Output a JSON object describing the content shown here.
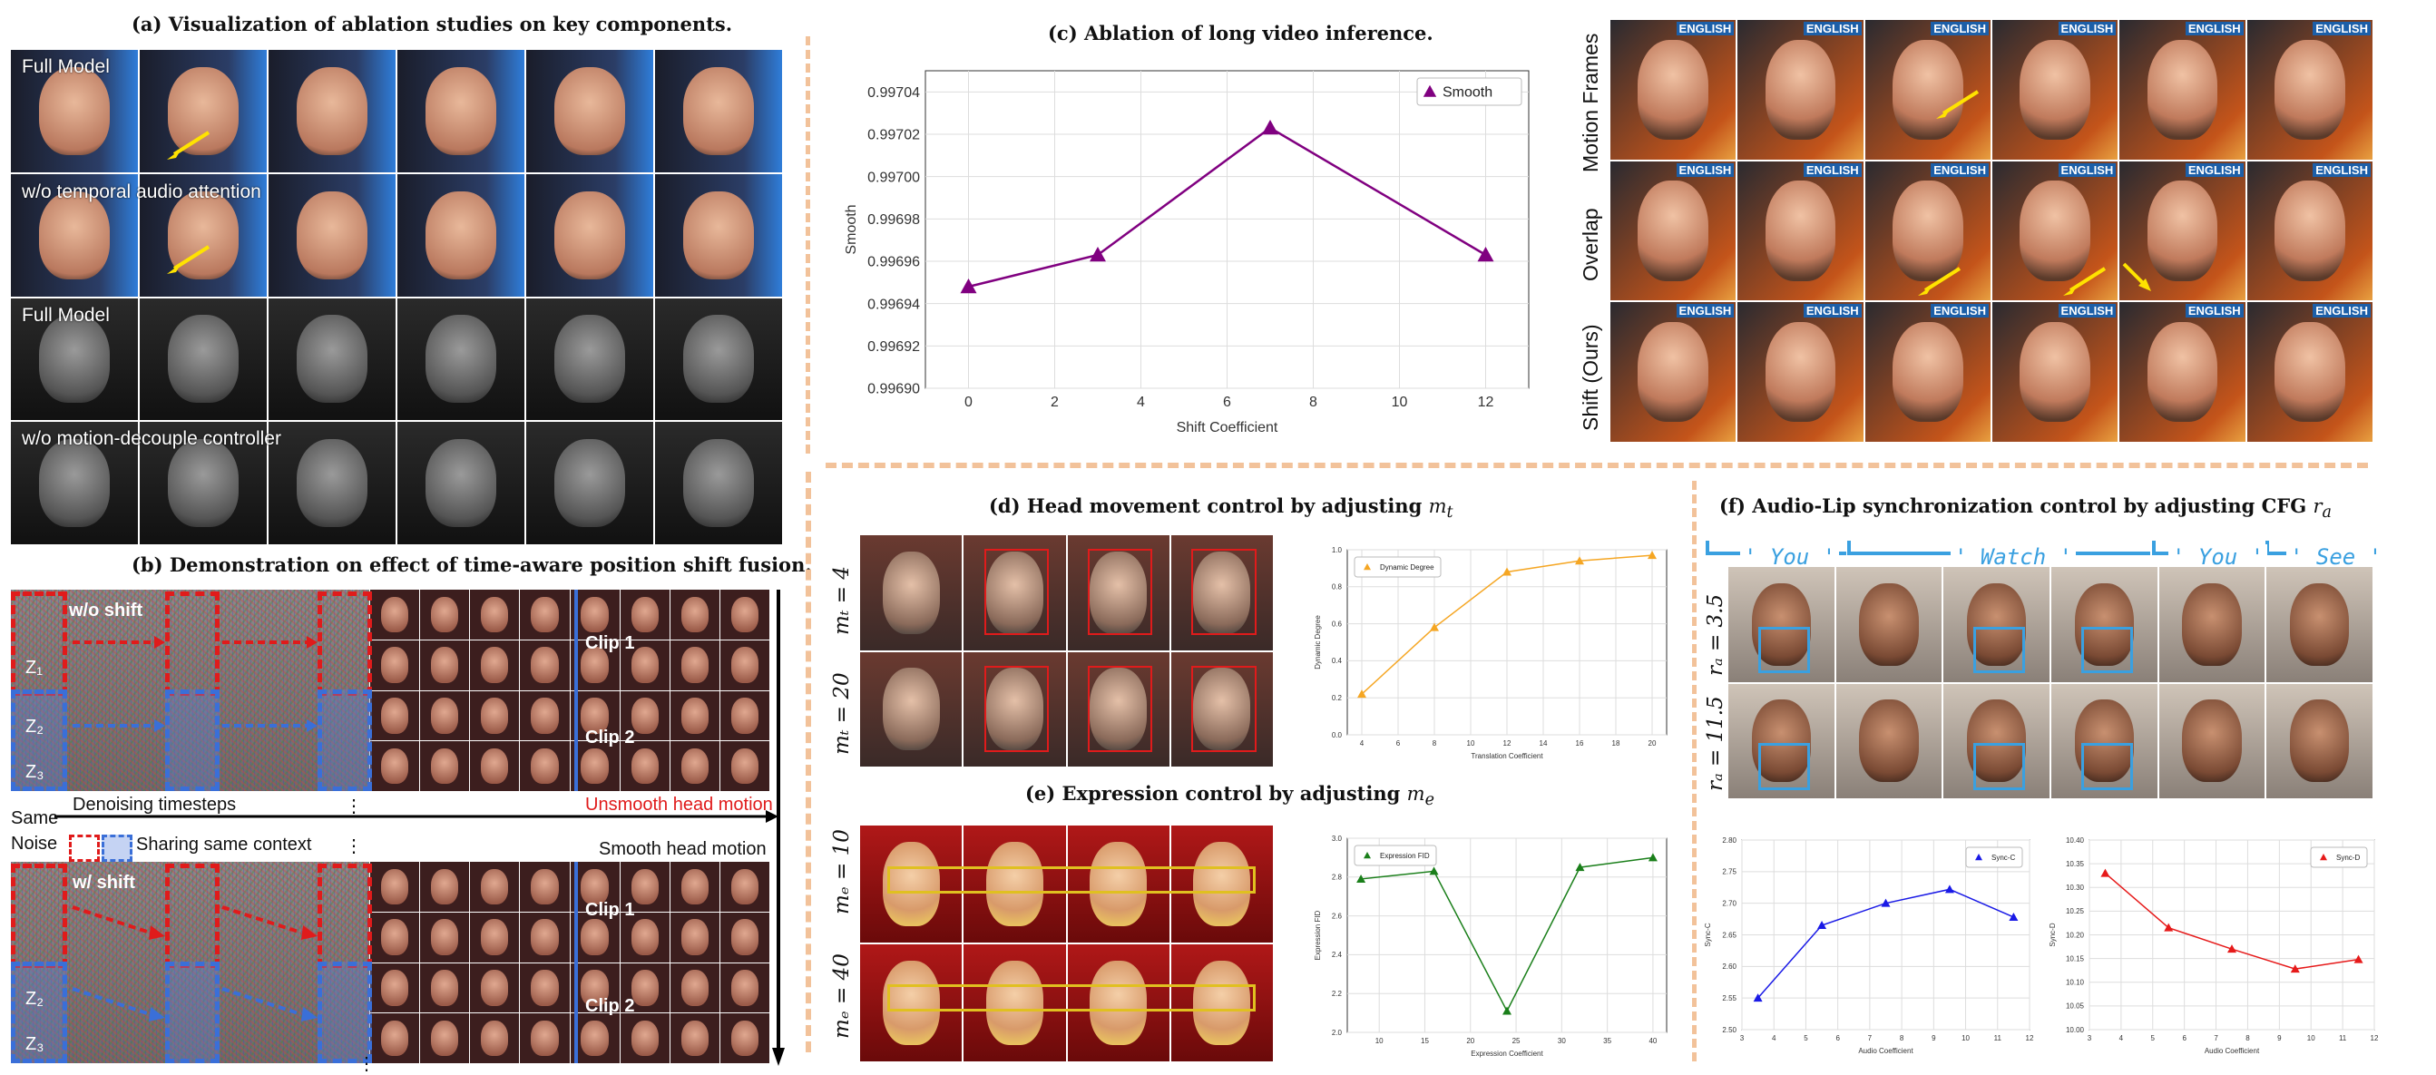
{
  "panel_a": {
    "title": "(a) Visualization of ablation studies on key components.",
    "row_labels": [
      "Full Model",
      "w/o temporal audio attention",
      "Full Model",
      "w/o motion-decouple controller"
    ]
  },
  "panel_b": {
    "title": "(b) Demonstration on effect of time-aware position shift fusion.",
    "wo_shift": "w/o shift",
    "w_shift": "w/ shift",
    "clip1": "Clip 1",
    "clip2": "Clip 2",
    "denoising": "Denoising timesteps",
    "ellipsis": "⋮",
    "same_noise": "Same Noise",
    "sharing": "Sharing same context",
    "unsmooth": "Unsmooth head motion",
    "smooth": "Smooth head motion",
    "z1": "Z₁",
    "z2": "Z₂",
    "z3": "Z₃"
  },
  "panel_c": {
    "title": "(c) Ablation of long video inference."
  },
  "panel_c_frames": {
    "row_labels": [
      "Motion Frames",
      "Overlap",
      "Shift (Ours)"
    ],
    "banner": "ENGLISH"
  },
  "panel_d": {
    "title": "(d) Head movement control by adjusting",
    "var": "m",
    "sub": "t",
    "row_labels": [
      "mₜ = 4",
      "mₜ = 20"
    ]
  },
  "panel_e": {
    "title": "(e) Expression control by adjusting",
    "var": "m",
    "sub": "e",
    "row_labels": [
      "mₑ = 10",
      "mₑ = 40"
    ]
  },
  "panel_f": {
    "title": "(f) Audio-Lip synchronization control by adjusting CFG",
    "var": "r",
    "sub": "a",
    "words": [
      "' You '",
      "' Watch '",
      "' You '",
      "' See '"
    ],
    "row_labels": [
      "rₐ = 3.5",
      "rₐ = 11.5"
    ]
  },
  "chart_data": [
    {
      "type": "line",
      "name": "panel_c",
      "x": [
        0,
        3,
        7,
        12
      ],
      "series": [
        {
          "name": "Smooth",
          "values": [
            0.996948,
            0.996963,
            0.997023,
            0.996963
          ],
          "color": "#800080",
          "marker": "triangle"
        }
      ],
      "xlabel": "Shift Coefficient",
      "ylabel": "Smooth",
      "xticks": [
        0,
        2,
        4,
        6,
        8,
        10,
        12
      ],
      "yticks": [
        "0.99690",
        "0.99692",
        "0.99694",
        "0.99696",
        "0.99698",
        "0.99700",
        "0.99702",
        "0.99704"
      ],
      "xlim": [
        -1,
        13
      ],
      "ylim": [
        0.9969,
        0.99705
      ],
      "grid": true,
      "legend": "top-right"
    },
    {
      "type": "line",
      "name": "panel_d",
      "x": [
        4,
        8,
        12,
        16,
        20
      ],
      "series": [
        {
          "name": "Dynamic Degree",
          "values": [
            0.22,
            0.58,
            0.88,
            0.94,
            0.97
          ],
          "color": "#f5a623",
          "marker": "triangle"
        }
      ],
      "xlabel": "Translation Coefficient",
      "ylabel": "Dynamic Degree",
      "xticks": [
        4,
        6,
        8,
        10,
        12,
        14,
        16,
        18,
        20
      ],
      "yticks": [
        "0.0",
        "0.2",
        "0.4",
        "0.6",
        "0.8",
        "1.0"
      ],
      "xlim": [
        3.2,
        20.8
      ],
      "ylim": [
        0,
        1.0
      ],
      "grid": true,
      "legend": "top-left"
    },
    {
      "type": "line",
      "name": "panel_e",
      "x": [
        8,
        16,
        24,
        32,
        40
      ],
      "series": [
        {
          "name": "Expression FID",
          "values": [
            2.79,
            2.83,
            2.11,
            2.85,
            2.9
          ],
          "color": "#1a7f1a",
          "marker": "triangle"
        }
      ],
      "xlabel": "Expression Coefficient",
      "ylabel": "Expression FID",
      "xticks": [
        10,
        15,
        20,
        25,
        30,
        35,
        40
      ],
      "yticks": [
        "2.0",
        "2.2",
        "2.4",
        "2.6",
        "2.8",
        "3.0"
      ],
      "xlim": [
        6.5,
        41.5
      ],
      "ylim": [
        2.0,
        3.0
      ],
      "grid": true,
      "legend": "top-left"
    },
    {
      "type": "line",
      "name": "panel_f_syncc",
      "x": [
        3.5,
        5.5,
        7.5,
        9.5,
        11.5
      ],
      "series": [
        {
          "name": "Sync-C",
          "values": [
            2.55,
            2.665,
            2.7,
            2.722,
            2.678
          ],
          "color": "#1a1ae6",
          "marker": "triangle"
        }
      ],
      "xlabel": "Audio Coefficient",
      "ylabel": "Sync-C",
      "xticks": [
        3,
        4,
        5,
        6,
        7,
        8,
        9,
        10,
        11,
        12
      ],
      "yticks": [
        "2.50",
        "2.55",
        "2.60",
        "2.65",
        "2.70",
        "2.75",
        "2.80"
      ],
      "xlim": [
        3,
        12
      ],
      "ylim": [
        2.5,
        2.8
      ],
      "grid": true,
      "legend": "top-right"
    },
    {
      "type": "line",
      "name": "panel_f_syncd",
      "x": [
        3.5,
        5.5,
        7.5,
        9.5,
        11.5
      ],
      "series": [
        {
          "name": "Sync-D",
          "values": [
            10.33,
            10.215,
            10.17,
            10.128,
            10.148
          ],
          "color": "#e61a1a",
          "marker": "triangle"
        }
      ],
      "xlabel": "Audio Coefficient",
      "ylabel": "Sync-D",
      "xticks": [
        3,
        4,
        5,
        6,
        7,
        8,
        9,
        10,
        11,
        12
      ],
      "yticks": [
        "10.00",
        "10.05",
        "10.10",
        "10.15",
        "10.20",
        "10.25",
        "10.30",
        "10.35",
        "10.40"
      ],
      "xlim": [
        3,
        12
      ],
      "ylim": [
        10.0,
        10.4
      ],
      "grid": true,
      "legend": "top-right"
    }
  ]
}
